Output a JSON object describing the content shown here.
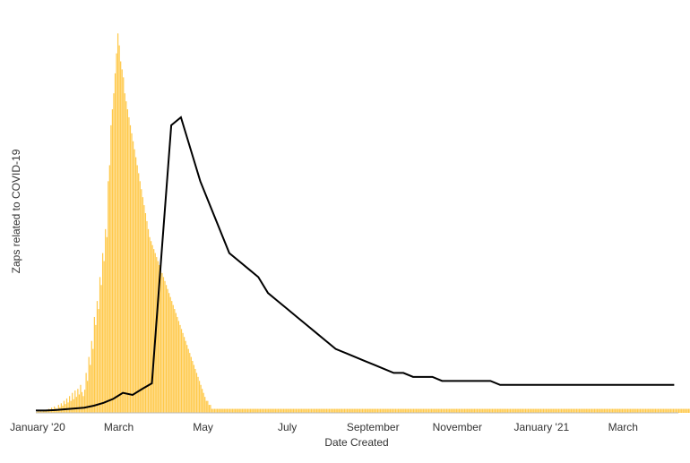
{
  "chart_data": {
    "type": "bar",
    "xlabel": "Date Created",
    "ylabel": "Zaps related to COVID-19",
    "x_range": [
      "2020-01-01",
      "2021-04-10"
    ],
    "y_range": [
      0,
      100
    ],
    "grid": false,
    "x_ticks": [
      {
        "date": "2020-01-01",
        "label": "January '20"
      },
      {
        "date": "2020-03-01",
        "label": "March"
      },
      {
        "date": "2020-05-01",
        "label": "May"
      },
      {
        "date": "2020-07-01",
        "label": "July"
      },
      {
        "date": "2020-09-01",
        "label": "September"
      },
      {
        "date": "2020-11-01",
        "label": "November"
      },
      {
        "date": "2021-01-01",
        "label": "January '21"
      },
      {
        "date": "2021-03-01",
        "label": "March"
      }
    ],
    "bar_color": "#ffc94a",
    "line_color": "#000000",
    "series": [
      {
        "type": "bar",
        "start_date": "2020-01-01",
        "values": [
          0.2,
          0.4,
          0.3,
          0.5,
          0.3,
          0.6,
          0.4,
          0.8,
          0.5,
          1,
          0.7,
          1.3,
          0.9,
          1.6,
          1.2,
          0.9,
          2,
          1.4,
          2.4,
          1.8,
          3,
          2.2,
          3.6,
          2.6,
          4.2,
          3,
          5,
          3.4,
          5.6,
          4,
          6,
          4.6,
          7,
          5.2,
          4.2,
          5.8,
          10,
          8,
          14,
          12,
          18,
          16,
          24,
          22,
          28,
          26,
          34,
          32,
          40,
          38,
          46,
          44,
          58,
          62,
          72,
          76,
          80,
          85,
          90,
          95,
          92,
          88,
          86,
          84,
          80,
          78,
          76,
          74,
          72,
          70,
          68,
          66,
          64,
          62,
          60,
          58,
          56,
          54,
          52,
          50,
          48,
          46,
          44,
          43,
          42,
          41,
          40,
          39,
          38,
          37,
          36,
          35,
          34,
          33,
          32,
          31,
          30,
          29,
          28,
          27,
          26,
          25,
          24,
          23,
          22,
          21,
          20,
          19,
          18,
          17,
          16,
          15,
          14,
          13,
          12,
          11,
          10,
          9,
          8,
          7,
          6,
          5,
          4,
          3,
          3,
          2,
          2,
          1,
          1,
          1,
          1,
          1,
          1,
          1,
          1,
          1,
          1,
          1,
          1,
          1,
          1,
          1,
          1,
          1,
          1,
          1,
          1,
          1,
          1,
          1,
          1,
          1,
          1,
          1,
          1,
          1,
          1,
          1,
          1,
          1,
          1,
          1,
          1,
          1,
          1,
          1,
          1,
          1,
          1,
          1,
          1,
          1,
          1,
          1,
          1,
          1,
          1,
          1,
          1,
          1,
          1,
          1,
          1,
          1,
          1,
          1,
          1,
          1,
          1,
          1,
          1,
          1,
          1,
          1,
          1,
          1,
          1,
          1,
          1,
          1,
          1,
          1,
          1,
          1,
          1,
          1,
          1,
          1,
          1,
          1,
          1,
          1,
          1,
          1,
          1,
          1,
          1,
          1,
          1,
          1,
          1,
          1,
          1,
          1,
          1,
          1,
          1,
          1,
          1,
          1,
          1,
          1,
          1,
          1,
          1,
          1,
          1,
          1,
          1,
          1,
          1,
          1,
          1,
          1,
          1,
          1,
          1,
          1,
          1,
          1,
          1,
          1,
          1,
          1,
          1,
          1,
          1,
          1,
          1,
          1,
          1,
          1,
          1,
          1,
          1,
          1,
          1,
          1,
          1,
          1,
          1,
          1,
          1,
          1,
          1,
          1,
          1,
          1,
          1,
          1,
          1,
          1,
          1,
          1,
          1,
          1,
          1,
          1,
          1,
          1,
          1,
          1,
          1,
          1,
          1,
          1,
          1,
          1,
          1,
          1,
          1,
          1,
          1,
          1,
          1,
          1,
          1,
          1,
          1,
          1,
          1,
          1,
          1,
          1,
          1,
          1,
          1,
          1,
          1,
          1,
          1,
          1,
          1,
          1,
          1,
          1,
          1,
          1,
          1,
          1,
          1,
          1,
          1,
          1,
          1,
          1,
          1,
          1,
          1,
          1,
          1,
          1,
          1,
          1,
          1,
          1,
          1,
          1,
          1,
          1,
          1,
          1,
          1,
          1,
          1,
          1,
          1,
          1,
          1,
          1,
          1,
          1,
          1,
          1,
          1,
          1,
          1,
          1,
          1,
          1,
          1,
          1,
          1,
          1,
          1,
          1,
          1,
          1,
          1,
          1,
          1,
          1,
          1,
          1,
          1,
          1,
          1,
          1,
          1,
          1,
          1,
          1,
          1,
          1,
          1,
          1,
          1,
          1,
          1,
          1,
          1,
          1,
          1,
          1,
          1,
          1,
          1,
          1,
          1,
          1,
          1,
          1,
          1,
          1,
          1,
          1,
          1,
          1,
          1,
          1,
          1,
          1,
          1,
          1,
          1,
          1,
          1,
          1,
          1,
          1,
          1,
          1,
          1,
          1,
          1,
          1,
          1,
          1,
          1,
          1,
          1,
          1,
          1,
          1,
          1,
          1,
          1,
          1,
          1,
          1,
          1,
          1,
          1,
          1,
          1,
          1,
          1,
          1,
          1,
          1,
          1,
          1,
          1,
          1,
          1,
          1,
          1,
          1,
          1,
          1,
          1,
          1,
          1,
          1,
          1,
          1,
          1,
          1,
          1,
          1,
          1,
          1,
          1,
          1,
          1,
          1,
          1,
          1,
          1,
          1,
          1,
          1,
          1,
          1,
          1,
          1,
          1,
          1,
          1,
          1
        ]
      },
      {
        "type": "line",
        "start_date": "2020-01-01",
        "step_days": 7,
        "values": [
          0.6,
          0.6,
          0.7,
          0.9,
          1.1,
          1.3,
          1.8,
          2.5,
          3.5,
          5,
          4.5,
          6,
          7.4,
          40,
          72,
          74,
          66,
          58,
          52,
          46,
          40,
          38,
          36,
          34,
          30,
          28,
          26,
          24,
          22,
          20,
          18,
          16,
          15,
          14,
          13,
          12,
          11,
          10,
          10,
          9,
          9,
          9,
          8,
          8,
          8,
          8,
          8,
          8,
          7,
          7,
          7,
          7,
          7,
          7,
          7,
          7,
          7,
          7,
          7,
          7,
          7,
          7,
          7,
          7,
          7,
          7,
          7
        ]
      }
    ]
  }
}
